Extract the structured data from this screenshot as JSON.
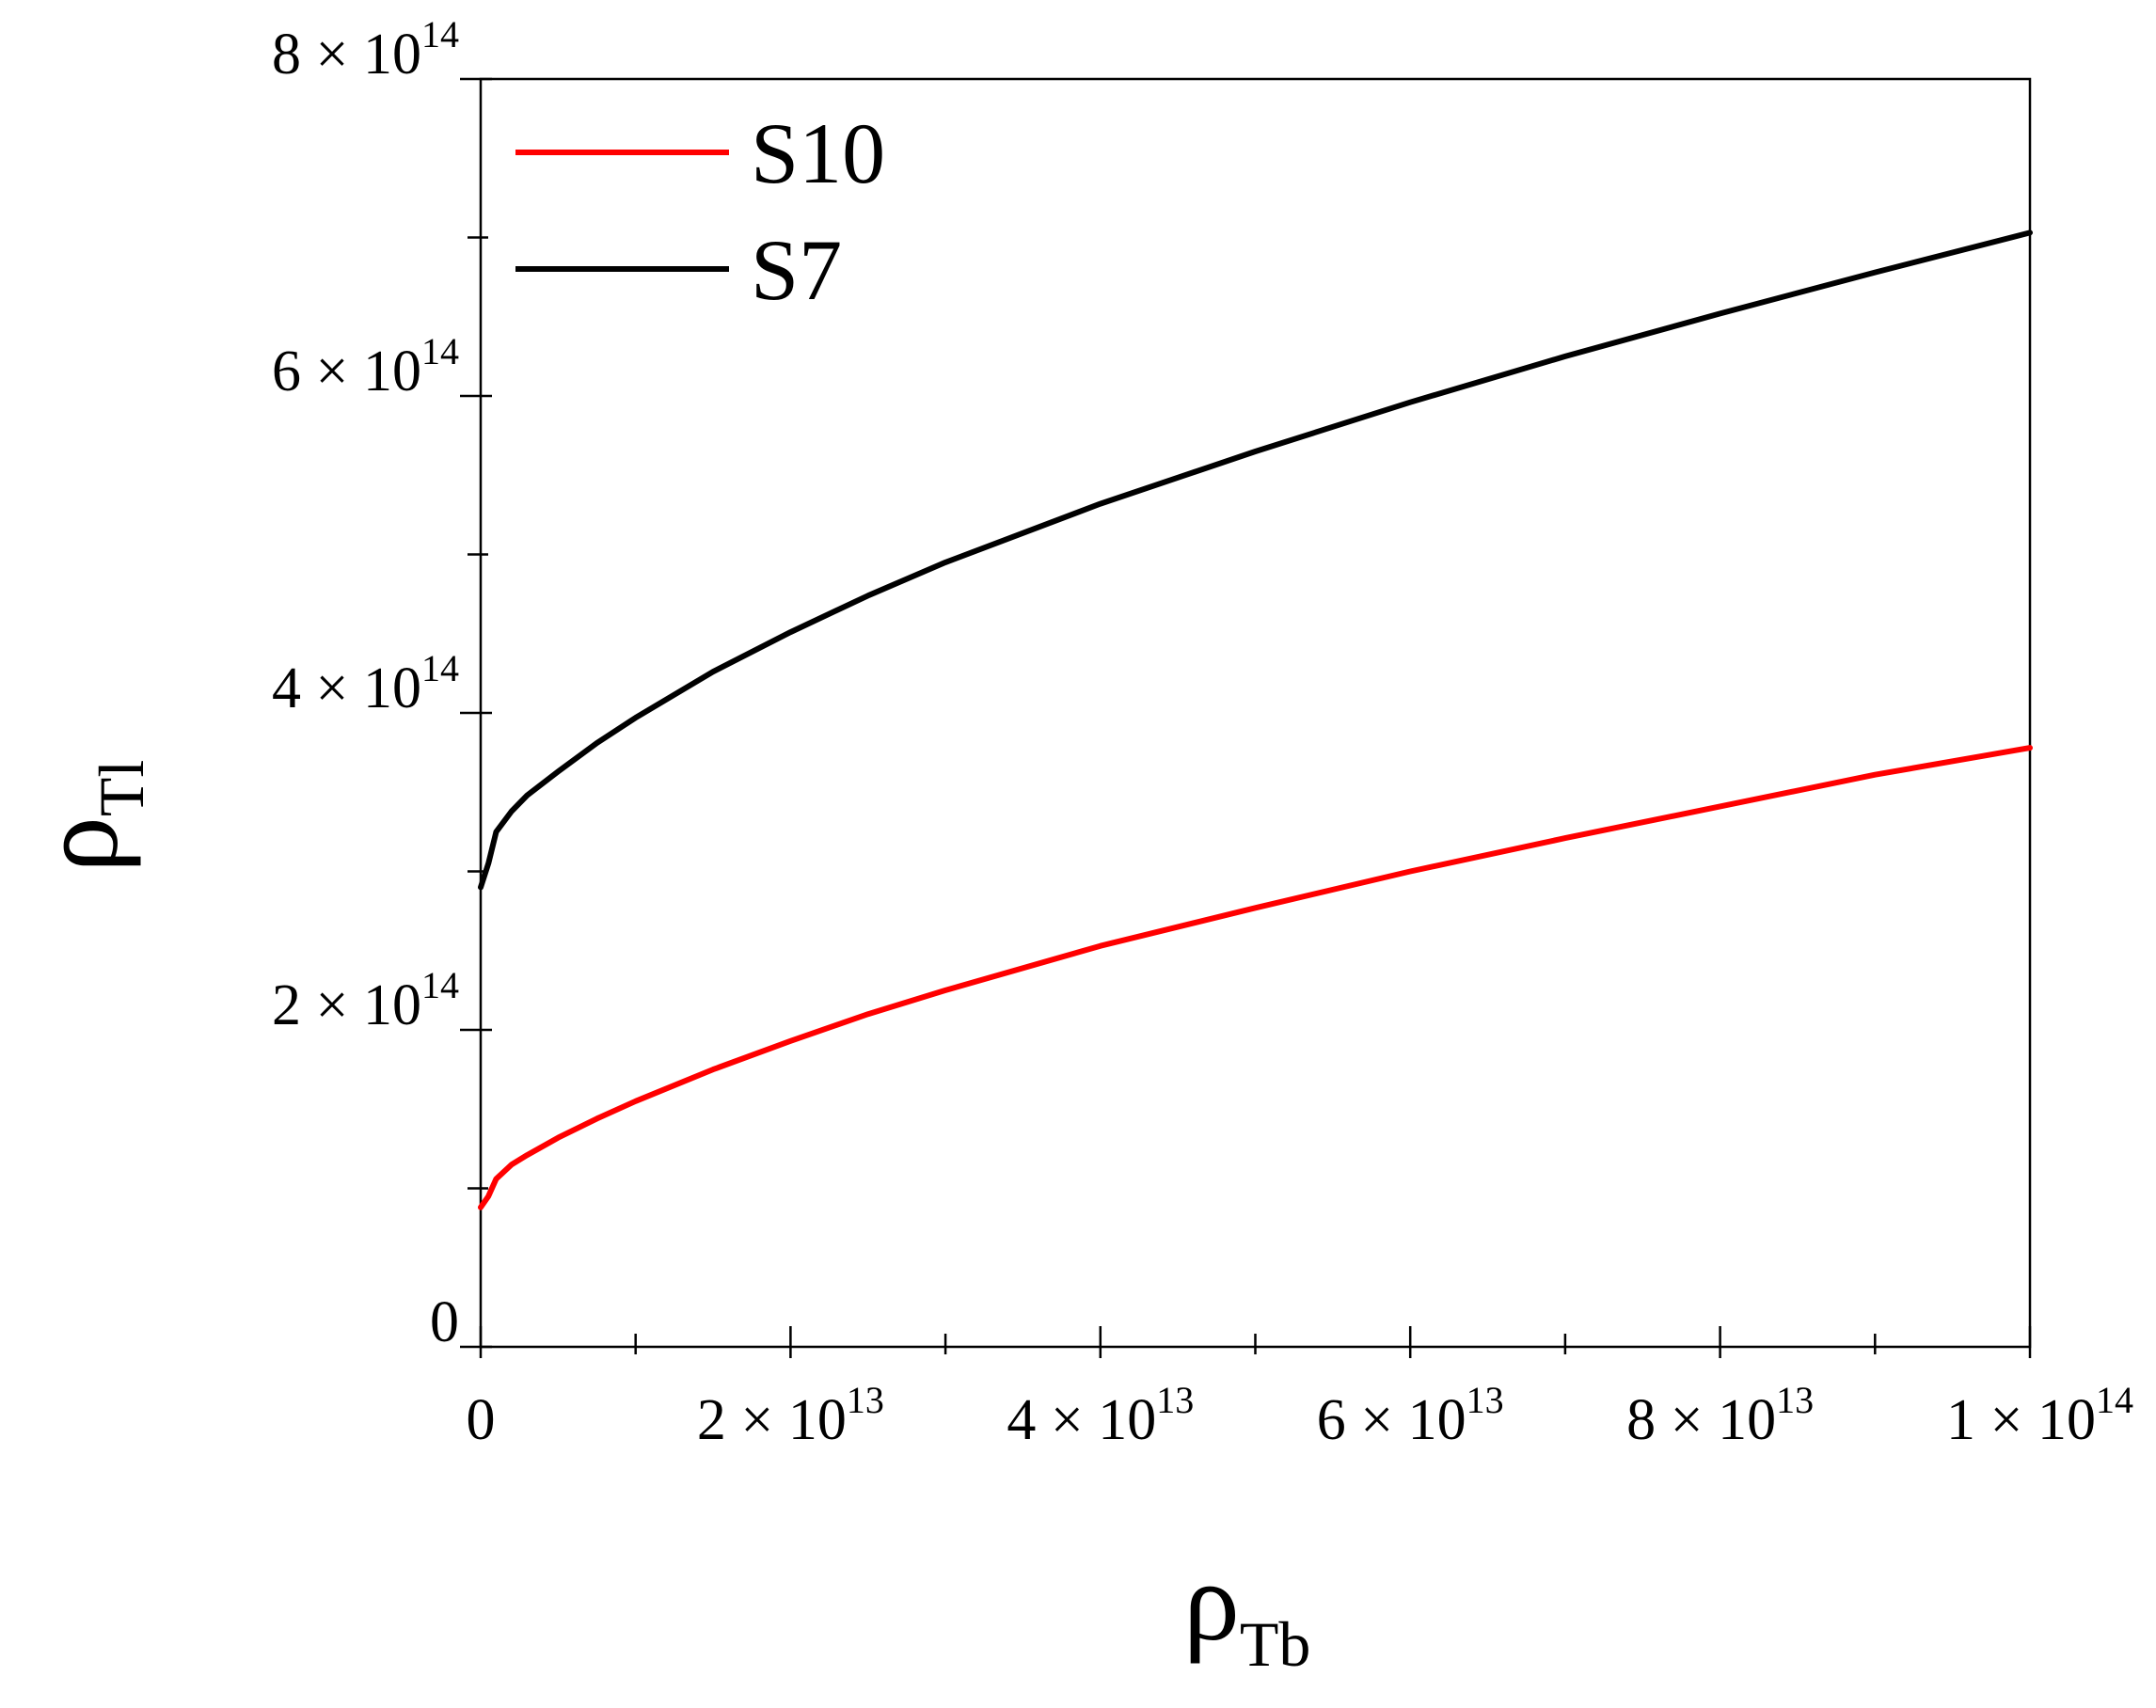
{
  "chart_data": {
    "type": "line",
    "title": "",
    "xlabel": {
      "main": "ρ",
      "sub": "Tb"
    },
    "ylabel": {
      "main": "ρ",
      "sub": "Tl"
    },
    "xlim": [
      0,
      100000000000000
    ],
    "ylim": [
      0,
      800000000000000
    ],
    "x_ticks": [
      {
        "value": 0,
        "mantissa": "0",
        "exponent": ""
      },
      {
        "value": 20000000000000,
        "mantissa": "2 × 10",
        "exponent": "13"
      },
      {
        "value": 40000000000000,
        "mantissa": "4 × 10",
        "exponent": "13"
      },
      {
        "value": 60000000000000,
        "mantissa": "6 × 10",
        "exponent": "13"
      },
      {
        "value": 80000000000000,
        "mantissa": "8 × 10",
        "exponent": "13"
      },
      {
        "value": 100000000000000,
        "mantissa": "1 × 10",
        "exponent": "14"
      }
    ],
    "x_minor_ticks": [
      10000000000000,
      30000000000000,
      50000000000000,
      70000000000000,
      90000000000000
    ],
    "y_ticks": [
      {
        "value": 0,
        "mantissa": "0",
        "exponent": ""
      },
      {
        "value": 200000000000000,
        "mantissa": "2 × 10",
        "exponent": "14"
      },
      {
        "value": 400000000000000,
        "mantissa": "4 × 10",
        "exponent": "14"
      },
      {
        "value": 600000000000000,
        "mantissa": "6 × 10",
        "exponent": "14"
      },
      {
        "value": 800000000000000,
        "mantissa": "8 × 10",
        "exponent": "14"
      }
    ],
    "y_minor_ticks": [
      100000000000000,
      300000000000000,
      500000000000000,
      700000000000000
    ],
    "legend_position": "top-left",
    "grid": false,
    "x": [
      0,
      500000000000,
      1000000000000,
      2000000000000,
      3000000000000,
      5000000000000,
      7500000000000,
      10000000000000,
      15000000000000,
      20000000000000,
      25000000000000,
      30000000000000,
      40000000000000,
      50000000000000,
      60000000000000,
      70000000000000,
      80000000000000,
      90000000000000,
      100000000000000
    ],
    "series": [
      {
        "name": "S10",
        "color": "#ff0000",
        "values": [
          88000000000000,
          95000000000000,
          106000000000000,
          115000000000000,
          121000000000000,
          132000000000000,
          144000000000000,
          155000000000000,
          175000000000000,
          193000000000000,
          210000000000000,
          225000000000000,
          253000000000000,
          277000000000000,
          300000000000000,
          321000000000000,
          341000000000000,
          361000000000000,
          378000000000000
        ]
      },
      {
        "name": "S7",
        "color": "#000000",
        "values": [
          290000000000000,
          305000000000000,
          325000000000000,
          338000000000000,
          348000000000000,
          363000000000000,
          381000000000000,
          397000000000000,
          426000000000000,
          451000000000000,
          474000000000000,
          495000000000000,
          532000000000000,
          565000000000000,
          596000000000000,
          625000000000000,
          652000000000000,
          678000000000000,
          703000000000000
        ]
      }
    ]
  }
}
